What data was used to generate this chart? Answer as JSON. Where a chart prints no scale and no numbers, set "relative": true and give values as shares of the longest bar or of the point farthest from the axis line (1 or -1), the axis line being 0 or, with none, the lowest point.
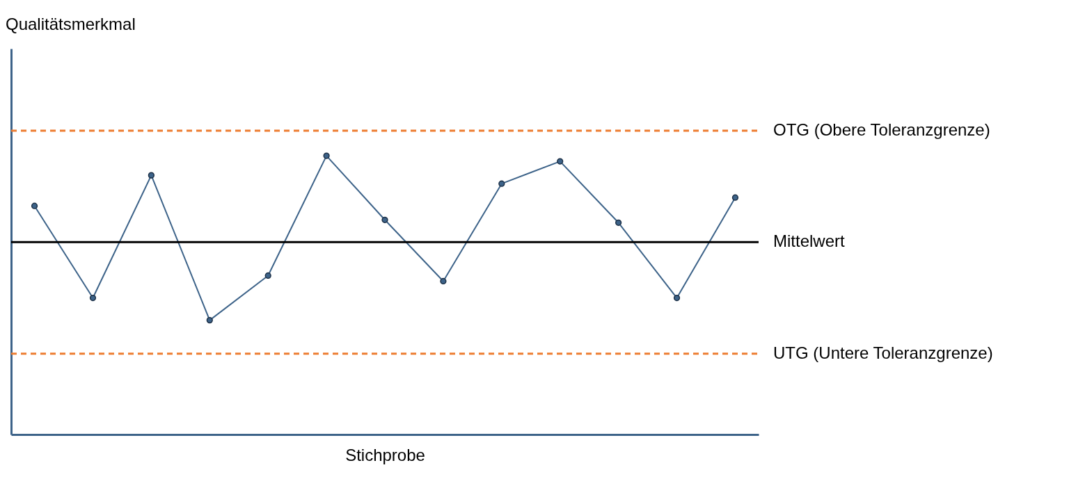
{
  "chart_data": {
    "type": "line",
    "relative": true,
    "xlabel": "Stichprobe",
    "annotations": [
      "Qualitätsmerkmal"
    ],
    "categories": [
      null,
      null,
      null,
      null,
      null,
      null,
      null,
      null,
      null,
      null,
      null,
      null,
      null
    ],
    "series": [
      {
        "color": "#3d6389",
        "values": [
          0.82,
          0.49,
          0.93,
          0.41,
          0.57,
          1.0,
          0.77,
          0.55,
          0.9,
          0.98,
          0.76,
          0.49,
          0.85
        ]
      }
    ],
    "marker": "circle",
    "line_style": "solid",
    "grid": false,
    "ref_lines": [
      {
        "axis": "y",
        "value": 1.09,
        "label": "OTG (Obere Toleranzgrenze)",
        "color": "#ed7d31",
        "line_style": "dashed"
      },
      {
        "axis": "y",
        "value": 0.69,
        "label": "Mittelwert",
        "color": "#000000",
        "line_style": "solid"
      },
      {
        "axis": "y",
        "value": 0.29,
        "label": "UTG (Untere Toleranzgrenze)",
        "color": "#ed7d31",
        "line_style": "dashed"
      }
    ]
  }
}
